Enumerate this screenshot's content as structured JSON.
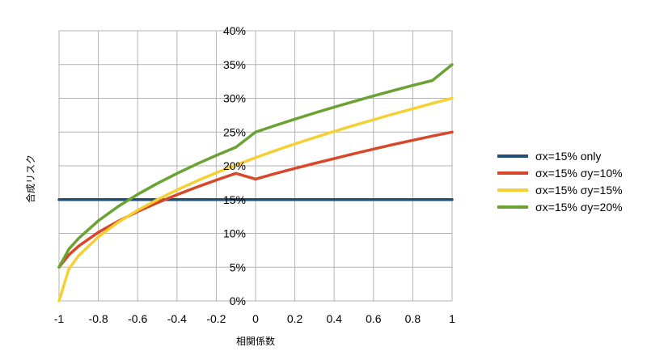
{
  "chart_data": {
    "type": "line",
    "title": "",
    "xlabel": "相関係数",
    "ylabel": "合成リスク",
    "xlim": [
      -1,
      1
    ],
    "ylim": [
      0,
      0.4
    ],
    "x_ticks": [
      -1,
      -0.8,
      -0.6,
      -0.4,
      -0.2,
      0,
      0.2,
      0.4,
      0.6,
      0.8,
      1
    ],
    "x_tick_labels": [
      "-1",
      "-0.8",
      "-0.6",
      "-0.4",
      "-0.2",
      "0",
      "0.2",
      "0.4",
      "0.6",
      "0.8",
      "1"
    ],
    "y_ticks": [
      0,
      0.05,
      0.1,
      0.15,
      0.2,
      0.25,
      0.3,
      0.35,
      0.4
    ],
    "y_tick_labels": [
      "0%",
      "5%",
      "10%",
      "15%",
      "20%",
      "25%",
      "30%",
      "35%",
      "40%"
    ],
    "grid": true,
    "legend_position": "right",
    "x": [
      -1,
      -0.95,
      -0.9,
      -0.8,
      -0.7,
      -0.6,
      -0.5,
      -0.4,
      -0.3,
      -0.2,
      -0.1,
      0,
      0.1,
      0.2,
      0.3,
      0.4,
      0.5,
      0.6,
      0.7,
      0.8,
      0.9,
      1
    ],
    "series": [
      {
        "name": "σx=15% only",
        "color": "#1f4e79",
        "values": [
          0.15,
          0.15,
          0.15,
          0.15,
          0.15,
          0.15,
          0.15,
          0.15,
          0.15,
          0.15,
          0.15,
          0.15,
          0.15,
          0.15,
          0.15,
          0.15,
          0.15,
          0.15,
          0.15,
          0.15,
          0.15,
          0.15
        ]
      },
      {
        "name": "σx=15% σy=10%",
        "color": "#d9472b",
        "values": [
          0.05,
          0.0682,
          0.0812,
          0.1015,
          0.1179,
          0.1323,
          0.1453,
          0.1572,
          0.1684,
          0.1789,
          0.1889,
          0.1803,
          0.1885,
          0.1962,
          0.2036,
          0.2107,
          0.2179,
          0.2248,
          0.2315,
          0.2379,
          0.2441,
          0.25
        ]
      },
      {
        "name": "σx=15% σy=15%",
        "color": "#f5d033",
        "values": [
          0.0,
          0.0474,
          0.0671,
          0.0949,
          0.1162,
          0.1342,
          0.15,
          0.1643,
          0.1775,
          0.1897,
          0.2012,
          0.2121,
          0.2225,
          0.2324,
          0.2418,
          0.251,
          0.2598,
          0.2683,
          0.2766,
          0.2846,
          0.2924,
          0.3
        ]
      },
      {
        "name": "σx=15% σy=20%",
        "color": "#6aa333",
        "values": [
          0.05,
          0.0768,
          0.0927,
          0.1187,
          0.1396,
          0.1577,
          0.1739,
          0.1887,
          0.2025,
          0.2154,
          0.2276,
          0.25,
          0.2598,
          0.2691,
          0.2782,
          0.2869,
          0.2953,
          0.3035,
          0.3114,
          0.3191,
          0.3264,
          0.35
        ]
      }
    ]
  }
}
